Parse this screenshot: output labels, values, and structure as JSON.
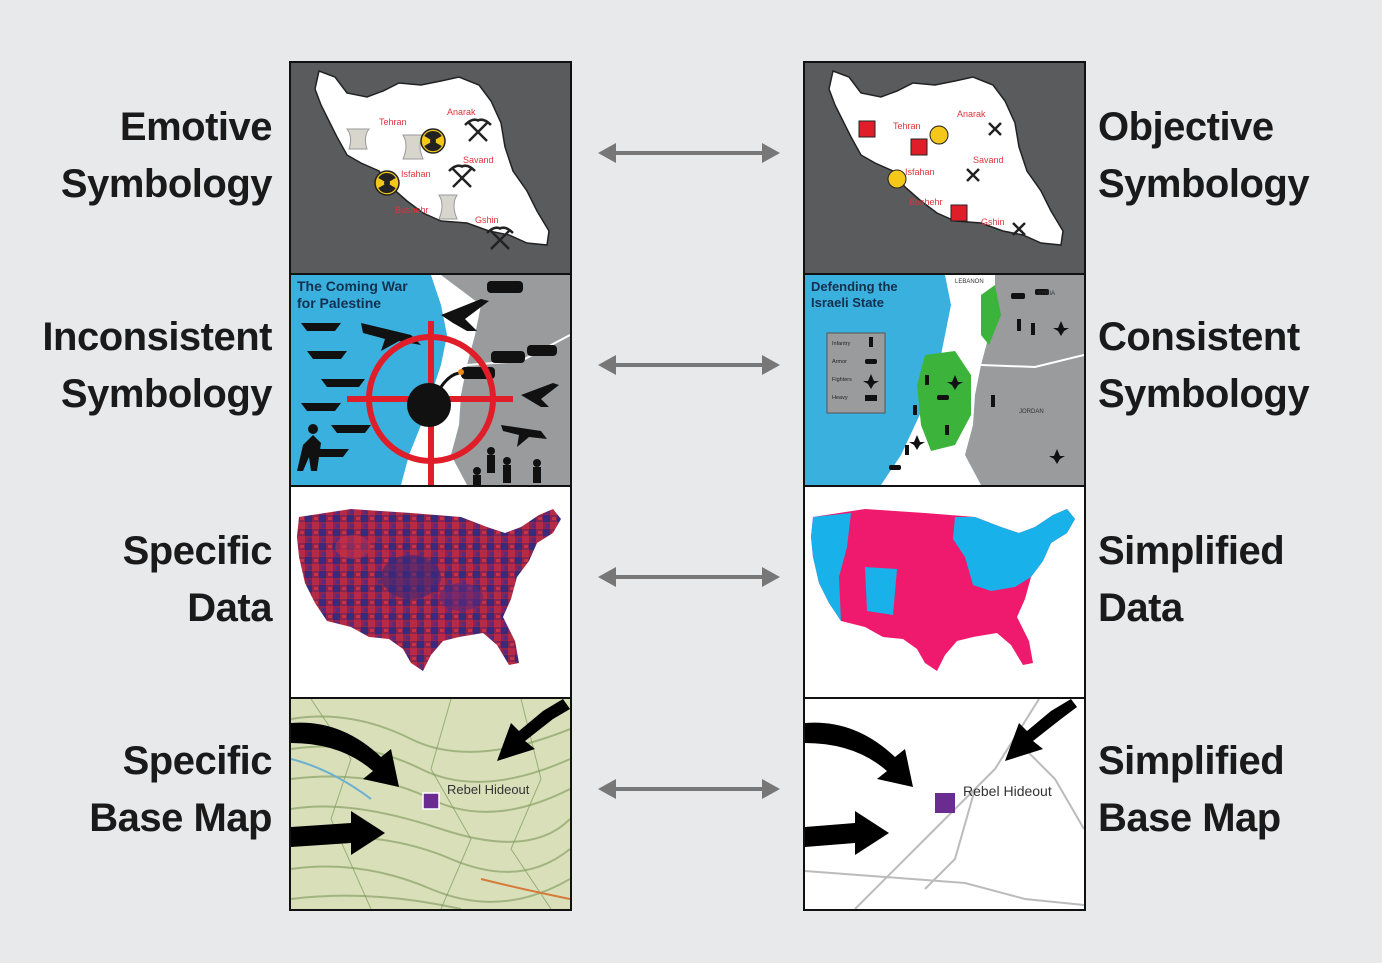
{
  "rows": [
    {
      "left_label": [
        "Emotive",
        "Symbology"
      ],
      "right_label": [
        "Objective",
        "Symbology"
      ]
    },
    {
      "left_label": [
        "Inconsistent",
        "Symbology"
      ],
      "right_label": [
        "Consistent",
        "Symbology"
      ]
    },
    {
      "left_label": [
        "Specific",
        "Data"
      ],
      "right_label": [
        "Simplified",
        "Data"
      ]
    },
    {
      "left_label": [
        "Specific",
        "Base Map"
      ],
      "right_label": [
        "Simplified",
        "Base Map"
      ]
    }
  ],
  "iran_cities": [
    "Tehran",
    "Anarak",
    "Isfahan",
    "Savand",
    "Bushehr",
    "Gshin"
  ],
  "palestine_panel": {
    "title_line1": "The Coming War",
    "title_line2": "for Palestine"
  },
  "israel_panel": {
    "title_line1": "Defending the",
    "title_line2": "Israeli State",
    "legend": [
      "Infantry",
      "Armor",
      "Fighters",
      "Heavy"
    ],
    "labels": [
      "LEBANON",
      "SYRIA",
      "JORDAN"
    ]
  },
  "base_map_label": "Rebel Hideout",
  "colors": {
    "background": "#e8e9eb",
    "panel_dark": "#5a5b5d",
    "city_label": "#e0333d",
    "water": "#3ab0df",
    "land_gray": "#9a9b9d",
    "pink": "#ef1a6e",
    "cyan": "#18b1ea",
    "purple": "#6b2c91",
    "arrow": "#777777"
  }
}
